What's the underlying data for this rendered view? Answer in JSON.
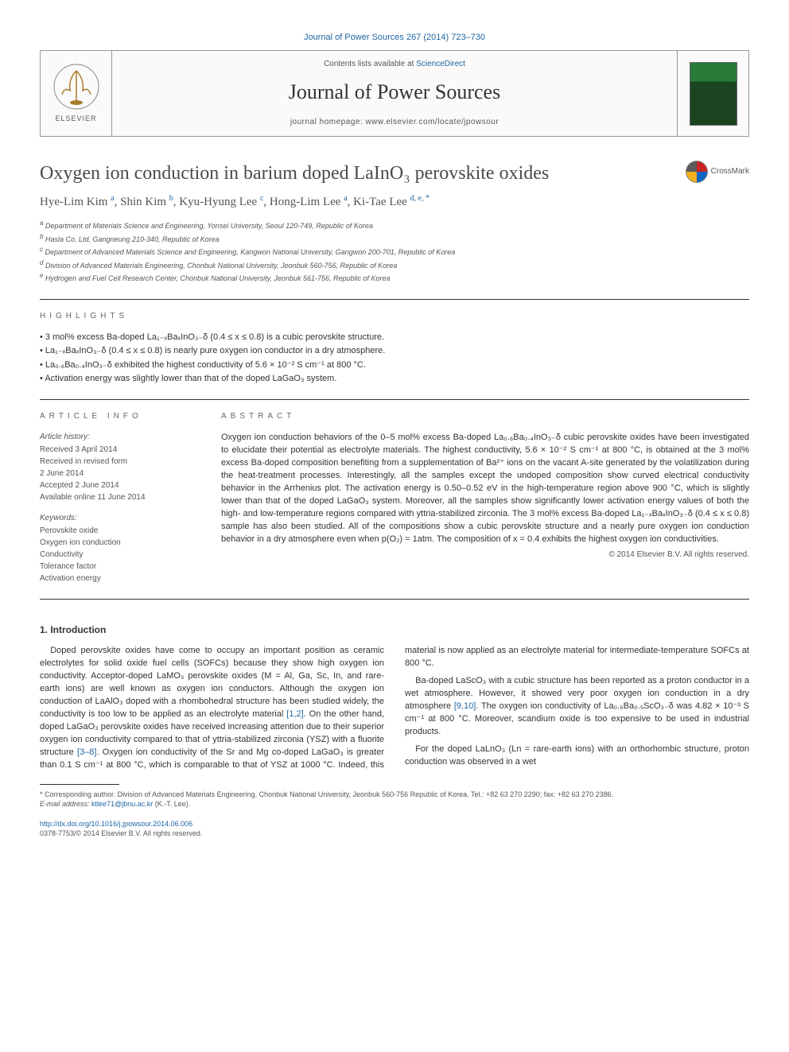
{
  "journal_ref": "Journal of Power Sources 267 (2014) 723–730",
  "header": {
    "contents_prefix": "Contents lists available at ",
    "contents_link": "ScienceDirect",
    "journal_title": "Journal of Power Sources",
    "homepage": "journal homepage: www.elsevier.com/locate/jpowsour",
    "elsevier_label": "ELSEVIER"
  },
  "crossmark_label": "CrossMark",
  "article": {
    "title": "Oxygen ion conduction in barium doped LaInO₃ perovskite oxides",
    "authors_html": "Hye-Lim Kim <sup>a</sup>, Shin Kim <sup>b</sup>, Kyu-Hyung Lee <sup>c</sup>, Hong-Lim Lee <sup>a</sup>, Ki-Tae Lee <sup>d, e, *</sup>",
    "affiliations": [
      "Department of Materials Science and Engineering, Yonsei University, Seoul 120-749, Republic of Korea",
      "Hasla Co. Ltd, Gangneung 210-340, Republic of Korea",
      "Department of Advanced Materials Science and Engineering, Kangwon National University, Gangwon 200-701, Republic of Korea",
      "Division of Advanced Materials Engineering, Chonbuk National University, Jeonbuk 560-756, Republic of Korea",
      "Hydrogen and Fuel Cell Research Center, Chonbuk National University, Jeonbuk 561-756, Republic of Korea"
    ],
    "affiliation_supers": [
      "a",
      "b",
      "c",
      "d",
      "e"
    ]
  },
  "highlights_heading": "HIGHLIGHTS",
  "highlights": [
    "3 mol% excess Ba-doped La₁₋ₓBaₓInO₃₋δ (0.4 ≤ x ≤ 0.8) is a cubic perovskite structure.",
    "La₁₋ₓBaₓInO₃₋δ (0.4 ≤ x ≤ 0.8) is nearly pure oxygen ion conductor in a dry atmosphere.",
    "La₀.₆Ba₀.₄InO₃₋δ exhibited the highest conductivity of 5.6 × 10⁻² S cm⁻¹ at 800 °C.",
    "Activation energy was slightly lower than that of the doped LaGaO₃ system."
  ],
  "article_info_heading": "ARTICLE INFO",
  "article_history_label": "Article history:",
  "article_history": [
    "Received 3 April 2014",
    "Received in revised form",
    "2 June 2014",
    "Accepted 2 June 2014",
    "Available online 11 June 2014"
  ],
  "keywords_label": "Keywords:",
  "keywords": [
    "Perovskite oxide",
    "Oxygen ion conduction",
    "Conductivity",
    "Tolerance factor",
    "Activation energy"
  ],
  "abstract_heading": "ABSTRACT",
  "abstract_text": "Oxygen ion conduction behaviors of the 0–5 mol% excess Ba-doped La₀.₆Ba₀.₄InO₃₋δ cubic perovskite oxides have been investigated to elucidate their potential as electrolyte materials. The highest conductivity, 5.6 × 10⁻² S cm⁻¹ at 800 °C, is obtained at the 3 mol% excess Ba-doped composition benefiting from a supplementation of Ba²⁺ ions on the vacant A-site generated by the volatilization during the heat-treatment processes. Interestingly, all the samples except the undoped composition show curved electrical conductivity behavior in the Arrhenius plot. The activation energy is 0.50–0.52 eV in the high-temperature region above 900 °C, which is slightly lower than that of the doped LaGaO₃ system. Moreover, all the samples show significantly lower activation energy values of both the high- and low-temperature regions compared with yttria-stabilized zirconia. The 3 mol% excess Ba-doped La₁₋ₓBaₓInO₃₋δ (0.4 ≤ x ≤ 0.8) sample has also been studied. All of the compositions show a cubic perovskite structure and a nearly pure oxygen ion conduction behavior in a dry atmosphere even when p(O₂) = 1atm. The composition of x = 0.4 exhibits the highest oxygen ion conductivities.",
  "copyright": "© 2014 Elsevier B.V. All rights reserved.",
  "intro_heading": "1. Introduction",
  "intro_paragraphs": [
    "Doped perovskite oxides have come to occupy an important position as ceramic electrolytes for solid oxide fuel cells (SOFCs) because they show high oxygen ion conductivity. Acceptor-doped LaMO₃ perovskite oxides (M = Al, Ga, Sc, In, and rare-earth ions) are well known as oxygen ion conductors. Although the oxygen ion conduction of LaAlO₃ doped with a rhombohedral structure has been studied widely, the conductivity is too low to be applied as an electrolyte material [1,2]. On the other hand, doped LaGaO₃ perovskite oxides have received increasing attention due to their superior oxygen ion conductivity compared to that of yttria-stabilized zirconia (YSZ) with a fluorite structure [3–8]. Oxygen ion conductivity of the Sr and Mg co-doped LaGaO₃ is greater than 0.1 S cm⁻¹ at 800 °C, which is comparable to that of YSZ at 1000 °C. Indeed, this material is now applied as an electrolyte material for intermediate-temperature SOFCs at 800 °C.",
    "Ba-doped LaScO₃ with a cubic structure has been reported as a proton conductor in a wet atmosphere. However, it showed very poor oxygen ion conduction in a dry atmosphere [9,10]. The oxygen ion conductivity of La₀.₅Ba₀.₅ScO₃₋δ was 4.82 × 10⁻³ S cm⁻¹ at 800 °C. Moreover, scandium oxide is too expensive to be used in industrial products.",
    "For the doped LaLnO₃ (Ln = rare-earth ions) with an orthorhombic structure, proton conduction was observed in a wet"
  ],
  "footnote": {
    "corresponding": "* Corresponding author. Division of Advanced Materials Engineering, Chonbuk National University, Jeonbuk 560-756 Republic of Korea. Tel.: +82 63 270 2290; fax: +82 63 270 2386.",
    "email_label": "E-mail address:",
    "email": "ktlee71@jbnu.ac.kr",
    "email_suffix": "(K.-T. Lee)."
  },
  "doi": {
    "url": "http://dx.doi.org/10.1016/j.jpowsour.2014.06.006",
    "issn": "0378-7753/© 2014 Elsevier B.V. All rights reserved."
  },
  "colors": {
    "link": "#2066a2",
    "text": "#333333",
    "muted": "#555555"
  }
}
